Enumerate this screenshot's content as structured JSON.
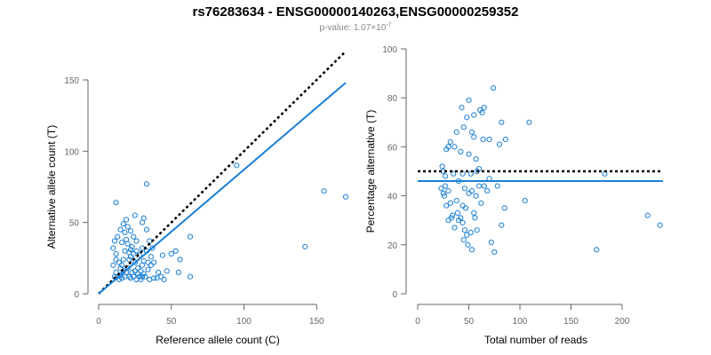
{
  "title": "rs76283634 - ENSG00000140263,ENSG00000259352",
  "subtitle_prefix": "p-value: 1.07×10",
  "subtitle_exponent": "-7",
  "colors": {
    "points": "#1a7fd6",
    "fit_line": "#1a7fd6",
    "reference_line": "#000000",
    "axis": "#666666",
    "subtitle": "#888888"
  },
  "chart_data": [
    {
      "type": "scatter",
      "title": "",
      "xlabel": "Reference allele count (C)",
      "ylabel": "Alternative allele count (T)",
      "xlim": [
        0,
        170
      ],
      "ylim": [
        0,
        150
      ],
      "xticks": [
        0,
        50,
        100,
        150
      ],
      "yticks": [
        0,
        50,
        100,
        150
      ],
      "grid": false,
      "series": [
        {
          "points": [
            [
              12,
              64
            ],
            [
              33,
              77
            ],
            [
              95,
              90
            ],
            [
              155,
              72
            ],
            [
              170,
              68
            ],
            [
              142,
              33
            ],
            [
              63,
              40
            ],
            [
              56,
              24
            ],
            [
              53,
              30
            ],
            [
              44,
              27
            ],
            [
              41,
              15
            ],
            [
              47,
              16
            ],
            [
              55,
              15
            ],
            [
              63,
              12
            ],
            [
              38,
              11
            ],
            [
              35,
              10
            ],
            [
              30,
              12
            ],
            [
              27,
              14
            ],
            [
              10,
              32
            ],
            [
              11,
              37
            ],
            [
              13,
              40
            ],
            [
              12,
              28
            ],
            [
              10,
              20
            ],
            [
              12,
              15
            ],
            [
              14,
              10
            ],
            [
              15,
              13
            ],
            [
              16,
              20
            ],
            [
              17,
              24
            ],
            [
              18,
              30
            ],
            [
              16,
              36
            ],
            [
              18,
              43
            ],
            [
              20,
              47
            ],
            [
              22,
              44
            ],
            [
              24,
              40
            ],
            [
              26,
              37
            ],
            [
              23,
              33
            ],
            [
              25,
              55
            ],
            [
              30,
              50
            ],
            [
              31,
              53
            ],
            [
              33,
              45
            ],
            [
              35,
              37
            ],
            [
              37,
              32
            ],
            [
              36,
              26
            ],
            [
              38,
              22
            ],
            [
              34,
              17
            ],
            [
              32,
              12
            ],
            [
              29,
              10
            ],
            [
              27,
              18
            ],
            [
              25,
              22
            ],
            [
              22,
              26
            ],
            [
              21,
              29
            ],
            [
              20,
              35
            ],
            [
              19,
              38
            ],
            [
              15,
              45
            ],
            [
              17,
              49
            ],
            [
              19,
              52
            ],
            [
              14,
              22
            ],
            [
              15,
              18
            ],
            [
              13,
              12
            ],
            [
              16,
              11
            ],
            [
              18,
              12
            ],
            [
              19,
              15
            ],
            [
              20,
              18
            ],
            [
              21,
              12
            ],
            [
              22,
              11
            ],
            [
              23,
              15
            ],
            [
              24,
              12
            ],
            [
              26,
              10
            ],
            [
              28,
              12
            ],
            [
              29,
              16
            ],
            [
              30,
              20
            ],
            [
              31,
              23
            ],
            [
              28,
              27
            ],
            [
              26,
              30
            ],
            [
              24,
              28
            ],
            [
              22,
              31
            ],
            [
              21,
              24
            ],
            [
              30,
              32
            ],
            [
              33,
              30
            ],
            [
              36,
              20
            ],
            [
              12,
              24
            ],
            [
              11,
              12
            ],
            [
              17,
              16
            ],
            [
              25,
              16
            ],
            [
              31,
              14
            ],
            [
              34,
              22
            ],
            [
              40,
              11
            ],
            [
              43,
              12
            ],
            [
              45,
              10
            ],
            [
              50,
              28
            ]
          ]
        }
      ],
      "lines": [
        {
          "name": "",
          "style": "dashed",
          "from": [
            0,
            0
          ],
          "to": [
            170,
            170
          ]
        },
        {
          "name": "",
          "style": "solid",
          "from": [
            0,
            0
          ],
          "to": [
            170,
            148
          ]
        }
      ]
    },
    {
      "type": "scatter",
      "title": "",
      "xlabel": "Total number of reads",
      "ylabel": "Percentage alternative (T)",
      "xlim": [
        0,
        240
      ],
      "ylim": [
        0,
        100
      ],
      "xticks": [
        0,
        50,
        100,
        150,
        200
      ],
      "yticks": [
        0,
        20,
        40,
        60,
        80,
        100
      ],
      "grid": false,
      "series": [
        {
          "points": [
            [
              74,
              84
            ],
            [
              50,
              79
            ],
            [
              43,
              76
            ],
            [
              61,
              75
            ],
            [
              55,
              73
            ],
            [
              65,
              76
            ],
            [
              63,
              74
            ],
            [
              48,
              72
            ],
            [
              82,
              70
            ],
            [
              109,
              70
            ],
            [
              38,
              66
            ],
            [
              45,
              68
            ],
            [
              53,
              66
            ],
            [
              55,
              64
            ],
            [
              64,
              63
            ],
            [
              70,
              63
            ],
            [
              86,
              63
            ],
            [
              80,
              61
            ],
            [
              32,
              62
            ],
            [
              30,
              60
            ],
            [
              28,
              59
            ],
            [
              36,
              60
            ],
            [
              42,
              58
            ],
            [
              50,
              57
            ],
            [
              57,
              55
            ],
            [
              60,
              51
            ],
            [
              25,
              50
            ],
            [
              24,
              52
            ],
            [
              27,
              48
            ],
            [
              35,
              49
            ],
            [
              44,
              49
            ],
            [
              52,
              49
            ],
            [
              58,
              50
            ],
            [
              65,
              44
            ],
            [
              70,
              47
            ],
            [
              78,
              44
            ],
            [
              40,
              46
            ],
            [
              46,
              43
            ],
            [
              53,
              42
            ],
            [
              57,
              40
            ],
            [
              60,
              44
            ],
            [
              27,
              44
            ],
            [
              23,
              43
            ],
            [
              25,
              41
            ],
            [
              26,
              40
            ],
            [
              30,
              42
            ],
            [
              32,
              37
            ],
            [
              38,
              38
            ],
            [
              44,
              36
            ],
            [
              47,
              35
            ],
            [
              55,
              33
            ],
            [
              62,
              37
            ],
            [
              105,
              38
            ],
            [
              85,
              35
            ],
            [
              30,
              30
            ],
            [
              33,
              31
            ],
            [
              36,
              27
            ],
            [
              40,
              30
            ],
            [
              44,
              29
            ],
            [
              48,
              24
            ],
            [
              52,
              25
            ],
            [
              56,
              31
            ],
            [
              58,
              26
            ],
            [
              45,
              22
            ],
            [
              49,
              20
            ],
            [
              53,
              18
            ],
            [
              72,
              21
            ],
            [
              75,
              17
            ],
            [
              82,
              28
            ],
            [
              175,
              18
            ],
            [
              183,
              49
            ],
            [
              225,
              32
            ],
            [
              237,
              28
            ],
            [
              34,
              32
            ],
            [
              39,
              33
            ],
            [
              42,
              31
            ],
            [
              50,
              41
            ],
            [
              68,
              42
            ],
            [
              46,
              26
            ],
            [
              28,
              36
            ]
          ]
        }
      ],
      "lines": [
        {
          "name": "",
          "style": "dashed",
          "y": 50
        },
        {
          "name": "",
          "style": "solid",
          "y": 46
        }
      ]
    }
  ]
}
